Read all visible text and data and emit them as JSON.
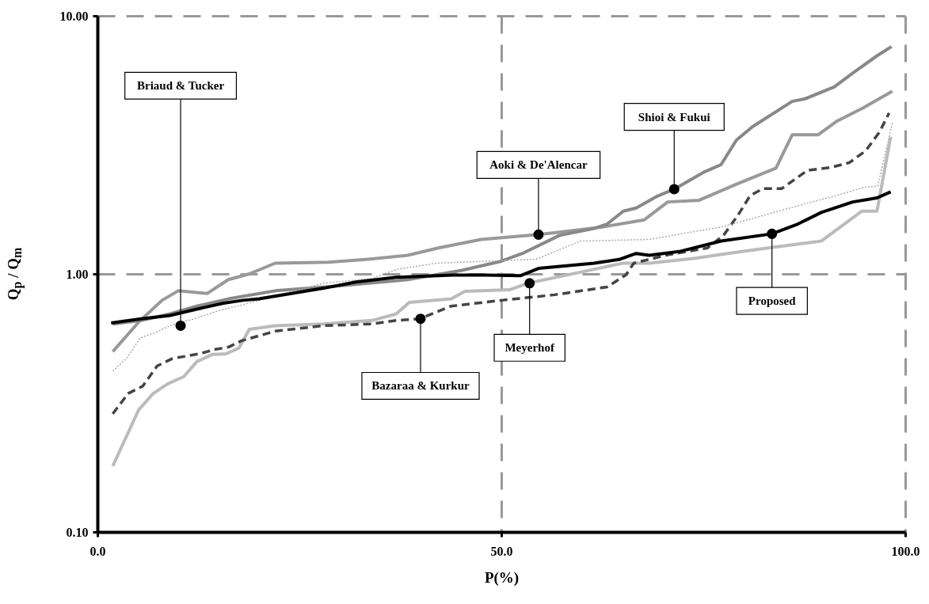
{
  "chart_data": {
    "type": "line",
    "xlabel": "P(%)",
    "ylabel": "Q$_{p}$ / Q$_{m}$",
    "log": "y",
    "grid": true,
    "xlim": [
      0,
      100
    ],
    "xticks": [
      {
        "value": 0,
        "label": "0.0"
      },
      {
        "value": 50,
        "label": "50.0"
      },
      {
        "value": 100,
        "label": "100.0"
      }
    ],
    "ylim": [
      0.1,
      10
    ],
    "yticks": [
      {
        "value": 0.1,
        "label": "0.10"
      },
      {
        "value": 1,
        "label": "1.00"
      },
      {
        "value": 10,
        "label": "10.00"
      }
    ],
    "series": [
      {
        "color": "#999999",
        "line_style": "solid",
        "x": [
          1.9,
          5.1,
          8,
          10,
          13.6,
          16.2,
          18.8,
          22,
          28.6,
          33.5,
          38.4,
          42.2,
          47.5,
          54.6,
          57.9,
          62.5,
          67.7,
          70.6,
          74.5,
          79,
          84,
          86,
          89.2,
          91.5,
          94.8,
          98.4
        ],
        "values": [
          0.5,
          0.65,
          0.79,
          0.86,
          0.84,
          0.95,
          1.0,
          1.1,
          1.11,
          1.14,
          1.18,
          1.26,
          1.36,
          1.42,
          1.46,
          1.52,
          1.62,
          1.9,
          1.93,
          2.22,
          2.57,
          3.46,
          3.46,
          3.9,
          4.4,
          5.1
        ]
      },
      {
        "color": "#888888",
        "line_style": "solid",
        "x": [
          1.9,
          5.4,
          9,
          12.3,
          16.2,
          22,
          30,
          38.4,
          45,
          50,
          52.6,
          57.2,
          61.5,
          63.1,
          65.1,
          66.7,
          69.3,
          71.4,
          75.2,
          77.2,
          79.1,
          81.1,
          86,
          87.6,
          91.2,
          93.5,
          96.5,
          98.3
        ],
        "values": [
          0.64,
          0.66,
          0.7,
          0.75,
          0.8,
          0.86,
          0.9,
          0.95,
          1.03,
          1.12,
          1.2,
          1.41,
          1.5,
          1.56,
          1.75,
          1.8,
          2.0,
          2.13,
          2.49,
          2.65,
          3.3,
          3.72,
          4.66,
          4.77,
          5.3,
          6.0,
          7.0,
          7.6
        ]
      },
      {
        "color": "#bbbbbb",
        "line_style": "solid",
        "x": [
          1.9,
          5.1,
          6.9,
          8.7,
          10.7,
          12.3,
          14.2,
          15.9,
          17.5,
          18.8,
          22,
          28,
          34,
          37,
          38.6,
          43.8,
          45.5,
          51,
          53.3,
          57.8,
          65,
          68.3,
          74,
          78,
          83,
          89.6,
          94.6,
          96.5,
          98.2
        ],
        "values": [
          0.18,
          0.297,
          0.344,
          0.375,
          0.4,
          0.457,
          0.487,
          0.49,
          0.515,
          0.61,
          0.63,
          0.64,
          0.66,
          0.7,
          0.776,
          0.8,
          0.856,
          0.868,
          0.92,
          0.985,
          1.1,
          1.1,
          1.15,
          1.2,
          1.26,
          1.34,
          1.75,
          1.75,
          3.4
        ]
      },
      {
        "color": "#444444",
        "line_style": "dashed",
        "x": [
          1.9,
          3.8,
          5.6,
          7.4,
          9.3,
          11,
          12.6,
          14.6,
          16.2,
          17.8,
          22,
          28,
          34,
          37,
          39.9,
          43.8,
          50,
          56.6,
          63.1,
          65.4,
          66.4,
          70.3,
          75.5,
          77.5,
          79.3,
          80.8,
          82.4,
          84.7,
          87.9,
          90.9,
          93.1,
          95.1,
          96.8,
          98
        ],
        "values": [
          0.287,
          0.344,
          0.367,
          0.44,
          0.47,
          0.48,
          0.49,
          0.51,
          0.52,
          0.55,
          0.6,
          0.63,
          0.64,
          0.66,
          0.67,
          0.75,
          0.79,
          0.83,
          0.89,
          0.99,
          1.1,
          1.18,
          1.26,
          1.41,
          1.69,
          2.01,
          2.14,
          2.14,
          2.52,
          2.59,
          2.7,
          3.0,
          3.54,
          4.2
        ]
      },
      {
        "color": "#aaaaaa",
        "line_style": "dotted",
        "x": [
          1.9,
          3.6,
          5.3,
          7,
          9,
          12,
          15,
          18,
          22,
          28,
          34,
          37,
          41.9,
          54.3,
          59.8,
          68.3,
          77.2,
          80.8,
          84.3,
          87.9,
          91.2,
          94.8,
          96.6,
          98.4
        ],
        "values": [
          0.42,
          0.47,
          0.565,
          0.59,
          0.63,
          0.67,
          0.72,
          0.76,
          0.82,
          0.92,
          0.96,
          1.04,
          1.1,
          1.14,
          1.34,
          1.36,
          1.52,
          1.63,
          1.75,
          1.88,
          2.0,
          2.16,
          2.19,
          3.85
        ]
      },
      {
        "color": "#000000",
        "line_style": "solid",
        "x": [
          1.7,
          5.4,
          9,
          12.3,
          15.6,
          18,
          20,
          24,
          28,
          32,
          37,
          44,
          48,
          52.4,
          54.6,
          61.5,
          64.7,
          66.7,
          68.3,
          72,
          77.2,
          83.5,
          86.7,
          89.6,
          93.5,
          96.5,
          98.2
        ],
        "values": [
          0.645,
          0.67,
          0.69,
          0.73,
          0.77,
          0.79,
          0.8,
          0.84,
          0.88,
          0.93,
          0.97,
          0.99,
          0.99,
          0.985,
          1.05,
          1.1,
          1.14,
          1.2,
          1.18,
          1.22,
          1.34,
          1.43,
          1.56,
          1.73,
          1.9,
          1.97,
          2.08
        ]
      }
    ],
    "annotations": [
      {
        "text": "Briaud & Tucker",
        "x": 10.3,
        "y": 0.63
      },
      {
        "text": "Aoki & De'Alencar",
        "x": 54.6,
        "y": 1.42
      },
      {
        "text": "Shioi & Fukui",
        "x": 71.4,
        "y": 2.13
      },
      {
        "text": "Bazaraa & Kurkur",
        "x": 40,
        "y": 0.67
      },
      {
        "text": "Meyerhof",
        "x": 53.5,
        "y": 0.92
      },
      {
        "text": "Proposed",
        "x": 83.5,
        "y": 1.43
      }
    ]
  }
}
